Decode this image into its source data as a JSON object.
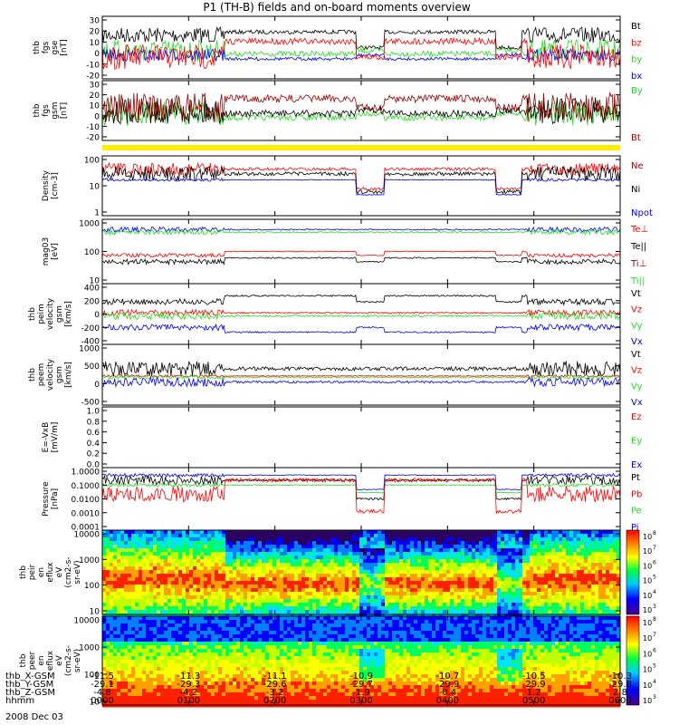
{
  "title": "P1 (TH-B) fields and on-board moments overview",
  "colors": {
    "black": "#000000",
    "red": "#ff0000",
    "green": "#22dd22",
    "blue": "#0000ee",
    "darkred": "#990000",
    "yellow": "#ffee00"
  },
  "panels": [
    {
      "id": "fgs_gse",
      "ylabel": [
        "thb",
        "fgs",
        "gse",
        "[nT]"
      ],
      "ticks": [
        "30",
        "20",
        "10",
        "0",
        "-10",
        "-20"
      ],
      "legend": [
        {
          "label": "Bt",
          "color": "#000000"
        },
        {
          "label": "bz",
          "color": "#ff0000"
        },
        {
          "label": "by",
          "color": "#22dd22"
        },
        {
          "label": "bx",
          "color": "#0000ee"
        }
      ]
    },
    {
      "id": "fgs_gsm",
      "ylabel": [
        "thb",
        "fgs",
        "gsm",
        "[nT]"
      ],
      "ticks": [
        "30",
        "20",
        "10",
        "0",
        "-10",
        "-20"
      ],
      "legend": [
        {
          "label": "By",
          "color": "#22dd22"
        },
        {
          "label": "Bt",
          "color": "#990000"
        }
      ]
    },
    {
      "id": "density",
      "ylabel": [
        "Density",
        "[cm-3]"
      ],
      "ticks": [
        "100",
        "10",
        "1"
      ],
      "legend": [
        {
          "label": "Ne",
          "color": "#990000"
        },
        {
          "label": "Ni",
          "color": "#000000"
        },
        {
          "label": "Npot",
          "color": "#0000ee"
        }
      ]
    },
    {
      "id": "temperature",
      "ylabel": [
        "mag03",
        "[eV]"
      ],
      "ticks": [
        "1000",
        "100",
        "10"
      ],
      "legend": [
        {
          "label": "Te⊥",
          "color": "#ff0000"
        },
        {
          "label": "Te||",
          "color": "#000000"
        },
        {
          "label": "Ti⊥",
          "color": "#990000"
        },
        {
          "label": "Ti||",
          "color": "#22dd22"
        }
      ]
    },
    {
      "id": "peim_velocity",
      "ylabel": [
        "thb",
        "peim",
        "velocity",
        "gsm",
        "[km/s]"
      ],
      "ticks": [
        "400",
        "200",
        "0",
        "-200",
        "-400"
      ],
      "legend": [
        {
          "label": "Vt",
          "color": "#000000"
        },
        {
          "label": "Vz",
          "color": "#ff0000"
        },
        {
          "label": "Vy",
          "color": "#22dd22"
        },
        {
          "label": "Vx",
          "color": "#0000ee"
        }
      ]
    },
    {
      "id": "peem_velocity",
      "ylabel": [
        "thb",
        "peem",
        "velocity",
        "gsm",
        "[km/s]"
      ],
      "ticks": [
        "1000",
        "500",
        "0",
        "-500"
      ],
      "legend": [
        {
          "label": "Vt",
          "color": "#000000"
        },
        {
          "label": "Vz",
          "color": "#ff0000"
        },
        {
          "label": "Vy",
          "color": "#22dd22"
        },
        {
          "label": "Vx",
          "color": "#0000ee"
        }
      ]
    },
    {
      "id": "efield",
      "ylabel": [
        "E=-VxB",
        "[mV/m]"
      ],
      "ticks": [
        "1.0",
        "0.8",
        "0.6",
        "0.4",
        "0.2",
        "0.0"
      ],
      "legend": [
        {
          "label": "Ez",
          "color": "#ff0000"
        },
        {
          "label": "Ey",
          "color": "#22dd22"
        },
        {
          "label": "Ex",
          "color": "#0000ee"
        }
      ]
    },
    {
      "id": "pressure",
      "ylabel": [
        "Pressure",
        "[nPa]"
      ],
      "ticks": [
        "1.0000",
        "0.1000",
        "0.0100",
        "0.0010",
        "0.0001"
      ],
      "legend": [
        {
          "label": "Pt",
          "color": "#000000"
        },
        {
          "label": "Pb",
          "color": "#ff0000"
        },
        {
          "label": "Pe",
          "color": "#22dd22"
        },
        {
          "label": "Pi",
          "color": "#0000ee"
        }
      ]
    },
    {
      "id": "peir",
      "ylabel": [
        "thb",
        "peir",
        "en",
        "eflux",
        "eV",
        "(cm2-s-",
        "sr-eV)"
      ],
      "ticks": [
        "10000",
        "1000",
        "100",
        "10"
      ],
      "cbar": [
        "10",
        "10",
        "10",
        "10",
        "10",
        "10"
      ],
      "cbar_exp": [
        "8",
        "7",
        "6",
        "5",
        "4",
        "3"
      ]
    },
    {
      "id": "peer",
      "ylabel": [
        "thb",
        "peer",
        "en",
        "eflux",
        "eV",
        "(cm2-s-",
        "sr-eV)"
      ],
      "ticks": [
        "10000",
        "1000",
        "100",
        "10"
      ],
      "cbar": [
        "10",
        "10",
        "10",
        "10",
        "10",
        "10"
      ],
      "cbar_exp": [
        "8",
        "7",
        "6",
        "5",
        "4",
        "3"
      ]
    }
  ],
  "footer": {
    "rows": [
      {
        "label": "thb_X-GSM",
        "values": [
          "-11.5",
          "-11.3",
          "-11.1",
          "-10.9",
          "-10.7",
          "-10.5",
          "-10.3"
        ]
      },
      {
        "label": "thb_Y-GSM",
        "values": [
          "-29.1",
          "-29.3",
          "-29.6",
          "-29.7",
          "-29.9",
          "-29.9",
          "-29.8"
        ]
      },
      {
        "label": "thb_Z-GSM",
        "values": [
          "-4.8",
          "-4.2",
          "-3.2",
          "-1.9",
          "-0.4",
          "1.2",
          "2.8"
        ]
      },
      {
        "label": "hhmm",
        "values": [
          "0000",
          "0100",
          "0200",
          "0300",
          "0400",
          "0500",
          "0600"
        ]
      }
    ],
    "date": "2008 Dec 03"
  },
  "chart_data": {
    "type": "line",
    "title": "P1 (TH-B) fields and on-board moments overview",
    "x_label": "hhmm",
    "x_ticks": [
      "0000",
      "0100",
      "0200",
      "0300",
      "0400",
      "0500",
      "0600"
    ],
    "date": "2008 Dec 03",
    "panels": [
      {
        "name": "fgs gse [nT]",
        "ylim": [
          -20,
          30
        ],
        "series": [
          "Bt",
          "bz",
          "by",
          "bx"
        ]
      },
      {
        "name": "fgs gsm [nT]",
        "ylim": [
          -20,
          30
        ],
        "series": [
          "By",
          "Bt"
        ]
      },
      {
        "name": "Density [cm-3]",
        "ylim": [
          1,
          100
        ],
        "scale": "log",
        "series": [
          "Ne",
          "Ni",
          "Npot"
        ]
      },
      {
        "name": "mag03 [eV]",
        "ylim": [
          10,
          1000
        ],
        "scale": "log",
        "series": [
          "Te⊥",
          "Te||",
          "Ti⊥",
          "Ti||"
        ]
      },
      {
        "name": "peim velocity gsm [km/s]",
        "ylim": [
          -400,
          400
        ],
        "series": [
          "Vt",
          "Vz",
          "Vy",
          "Vx"
        ]
      },
      {
        "name": "peem velocity gsm [km/s]",
        "ylim": [
          -500,
          1000
        ],
        "series": [
          "Vt",
          "Vz",
          "Vy",
          "Vx"
        ]
      },
      {
        "name": "E=-VxB [mV/m]",
        "ylim": [
          0,
          1
        ],
        "series": [
          "Ez",
          "Ey",
          "Ex"
        ]
      },
      {
        "name": "Pressure [nPa]",
        "ylim": [
          0.0001,
          1
        ],
        "scale": "log",
        "series": [
          "Pt",
          "Pb",
          "Pe",
          "Pi"
        ]
      },
      {
        "name": "peir en eflux",
        "type": "heatmap",
        "ylim": [
          10,
          10000
        ],
        "scale": "log",
        "colorbar": [
          1000,
          100000000
        ]
      },
      {
        "name": "peer en eflux",
        "type": "heatmap",
        "ylim": [
          10,
          10000
        ],
        "scale": "log",
        "colorbar": [
          1000,
          100000000
        ]
      }
    ]
  }
}
